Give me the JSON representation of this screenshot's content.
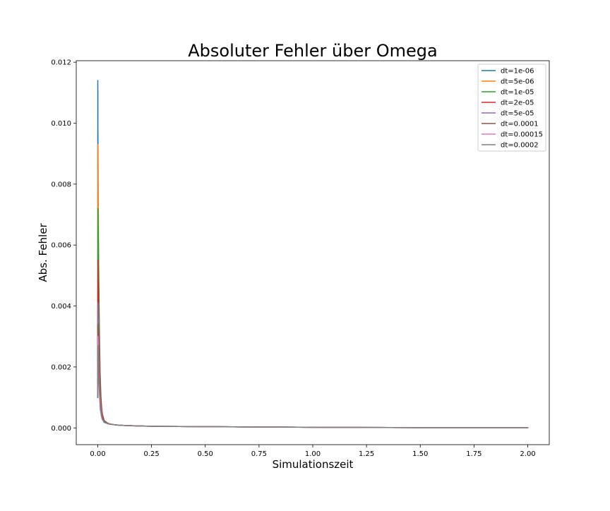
{
  "chart_data": {
    "type": "line",
    "title": "Absoluter Fehler über Omega",
    "xlabel": "Simulationszeit",
    "ylabel": "Abs. Fehler",
    "xlim": [
      -0.1,
      2.1
    ],
    "ylim": [
      -0.00055,
      0.01205
    ],
    "x_ticks": [
      0.0,
      0.25,
      0.5,
      0.75,
      1.0,
      1.25,
      1.5,
      1.75,
      2.0
    ],
    "x_tick_labels": [
      "0.00",
      "0.25",
      "0.50",
      "0.75",
      "1.00",
      "1.25",
      "1.50",
      "1.75",
      "2.00"
    ],
    "y_ticks": [
      0.0,
      0.002,
      0.004,
      0.006,
      0.008,
      0.01,
      0.012
    ],
    "y_tick_labels": [
      "0.000",
      "0.002",
      "0.004",
      "0.006",
      "0.008",
      "0.010",
      "0.012"
    ],
    "grid": false,
    "legend_position": "top-right",
    "series": [
      {
        "name": "dt=1e-06",
        "color": "#1f77b4",
        "x": [
          0.0,
          0.0002,
          0.0004,
          0.0006,
          0.0008,
          0.001,
          0.0013,
          0.0016,
          0.002,
          0.003,
          0.005,
          0.008,
          0.012,
          0.02,
          0.03,
          0.05,
          0.08,
          0.12,
          0.2,
          0.3,
          0.5,
          0.75,
          1.0,
          1.25,
          1.5
        ],
        "y": [
          0.001,
          0.0114,
          0.0098,
          0.0111,
          0.0086,
          0.0097,
          0.0072,
          0.008,
          0.006,
          0.0043,
          0.0025,
          0.0012,
          0.0006,
          0.0003,
          0.00018,
          0.00013,
          0.0001,
          8e-05,
          6e-05,
          5e-05,
          4e-05,
          3e-05,
          2e-05,
          1.5e-05,
          1e-05
        ]
      },
      {
        "name": "dt=5e-06",
        "color": "#ff7f0e",
        "x": [
          0.0,
          0.0005,
          0.001,
          0.0015,
          0.002,
          0.003,
          0.004,
          0.006,
          0.009,
          0.013,
          0.02,
          0.03,
          0.05,
          0.08,
          0.12,
          0.2,
          0.3,
          0.5,
          0.75,
          1.0,
          1.5
        ],
        "y": [
          0.001,
          0.0093,
          0.0085,
          0.0091,
          0.0078,
          0.0068,
          0.0052,
          0.0036,
          0.0019,
          0.0009,
          0.0004,
          0.00022,
          0.00014,
          0.0001,
          8e-05,
          6e-05,
          5e-05,
          4e-05,
          3e-05,
          2e-05,
          1e-05
        ]
      },
      {
        "name": "dt=1e-05",
        "color": "#2ca02c",
        "x": [
          0.0,
          0.001,
          0.002,
          0.003,
          0.004,
          0.006,
          0.008,
          0.011,
          0.015,
          0.02,
          0.03,
          0.05,
          0.08,
          0.12,
          0.2,
          0.3,
          0.5,
          0.75,
          1.0,
          1.5,
          2.0
        ],
        "y": [
          0.001,
          0.0072,
          0.0066,
          0.0061,
          0.0055,
          0.0042,
          0.003,
          0.0018,
          0.001,
          0.0005,
          0.00024,
          0.00014,
          0.0001,
          8e-05,
          6e-05,
          5e-05,
          4e-05,
          3e-05,
          2e-05,
          1e-05,
          1e-05
        ]
      },
      {
        "name": "dt=2e-05",
        "color": "#d62728",
        "x": [
          0.0,
          0.001,
          0.002,
          0.003,
          0.004,
          0.005,
          0.006,
          0.008,
          0.01,
          0.013,
          0.017,
          0.022,
          0.03,
          0.05,
          0.08,
          0.12,
          0.2,
          0.3,
          0.5,
          0.75,
          1.0,
          1.5,
          2.0
        ],
        "y": [
          0.001,
          0.0055,
          0.0042,
          0.0048,
          0.0035,
          0.0028,
          0.0032,
          0.0022,
          0.0016,
          0.0011,
          0.0007,
          0.0004,
          0.00022,
          0.00014,
          0.0001,
          8e-05,
          6e-05,
          5e-05,
          4e-05,
          3e-05,
          2e-05,
          1e-05,
          1e-05
        ]
      },
      {
        "name": "dt=5e-05",
        "color": "#9467bd",
        "x": [
          0.0,
          0.001,
          0.002,
          0.003,
          0.004,
          0.006,
          0.008,
          0.01,
          0.013,
          0.017,
          0.022,
          0.03,
          0.05,
          0.08,
          0.12,
          0.2,
          0.3,
          0.5,
          0.75,
          1.0,
          1.5,
          2.0
        ],
        "y": [
          0.001,
          0.0041,
          0.0033,
          0.0036,
          0.0028,
          0.0021,
          0.0016,
          0.0012,
          0.0008,
          0.0005,
          0.0003,
          0.0002,
          0.00013,
          0.0001,
          8e-05,
          6e-05,
          5e-05,
          4e-05,
          3e-05,
          2e-05,
          1e-05,
          1e-05
        ]
      },
      {
        "name": "dt=0.0001",
        "color": "#8c564b",
        "x": [
          0.0,
          0.001,
          0.002,
          0.003,
          0.005,
          0.007,
          0.01,
          0.013,
          0.017,
          0.022,
          0.03,
          0.05,
          0.08,
          0.12,
          0.2,
          0.3,
          0.5,
          0.75,
          1.0,
          1.5,
          2.0
        ],
        "y": [
          0.001,
          0.0034,
          0.0031,
          0.0026,
          0.002,
          0.0015,
          0.0011,
          0.0007,
          0.0004,
          0.00028,
          0.0002,
          0.00013,
          0.0001,
          8e-05,
          6e-05,
          5e-05,
          4e-05,
          3e-05,
          2e-05,
          1e-05,
          1e-05
        ]
      },
      {
        "name": "dt=0.00015",
        "color": "#e377c2",
        "x": [
          0.0,
          0.001,
          0.002,
          0.003,
          0.005,
          0.007,
          0.01,
          0.013,
          0.017,
          0.022,
          0.03,
          0.05,
          0.08,
          0.12,
          0.2,
          0.3,
          0.5,
          0.75,
          1.0,
          1.5,
          2.0
        ],
        "y": [
          0.001,
          0.003,
          0.0028,
          0.0024,
          0.0018,
          0.0014,
          0.001,
          0.0007,
          0.0004,
          0.00028,
          0.0002,
          0.00013,
          0.0001,
          8e-05,
          6e-05,
          5e-05,
          4e-05,
          3e-05,
          2e-05,
          1e-05,
          1e-05
        ]
      },
      {
        "name": "dt=0.0002",
        "color": "#7f7f7f",
        "x": [
          0.0,
          0.001,
          0.002,
          0.003,
          0.005,
          0.007,
          0.01,
          0.013,
          0.017,
          0.022,
          0.03,
          0.05,
          0.08,
          0.12,
          0.2,
          0.3,
          0.5,
          0.75,
          1.0,
          1.5,
          2.0
        ],
        "y": [
          0.001,
          0.0027,
          0.0025,
          0.0022,
          0.0017,
          0.0013,
          0.0009,
          0.0006,
          0.0004,
          0.00027,
          0.0002,
          0.00013,
          0.0001,
          8e-05,
          6e-05,
          5e-05,
          4e-05,
          3e-05,
          2e-05,
          1e-05,
          1e-05
        ]
      }
    ]
  }
}
